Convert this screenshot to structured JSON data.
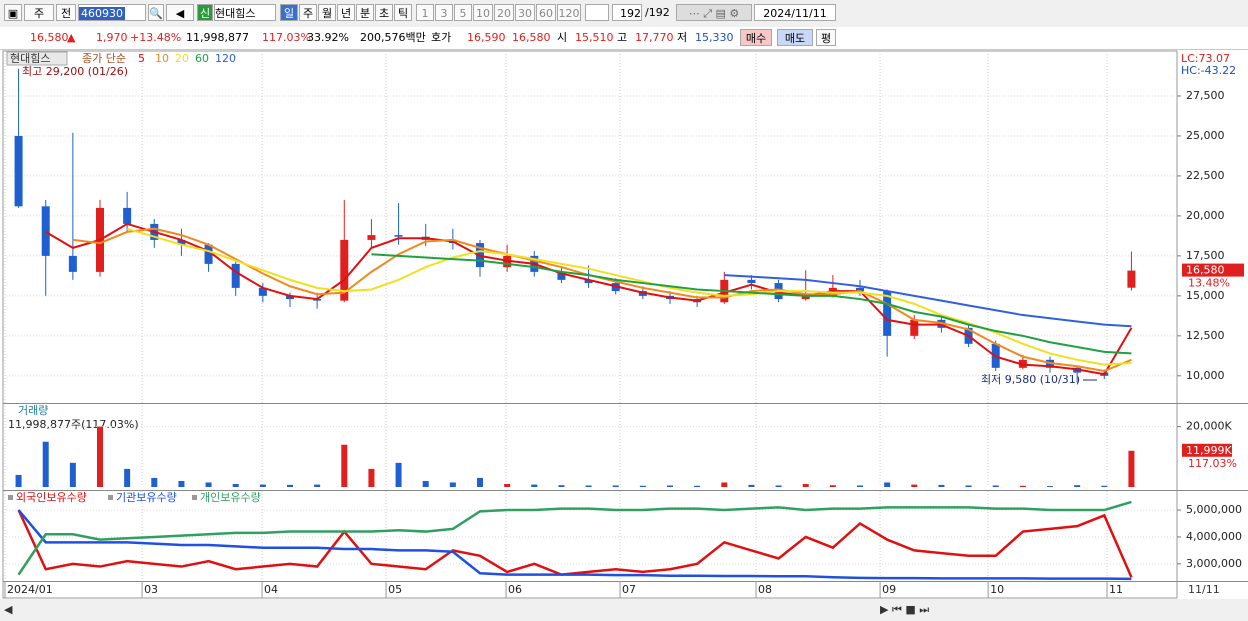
{
  "toolbar": {
    "period": "주",
    "kind": "전",
    "code": "460930",
    "badge": "신",
    "name": "현대힘스",
    "intervals": [
      "일",
      "주",
      "월",
      "년",
      "분",
      "초",
      "틱"
    ],
    "multipliers": [
      "1",
      "3",
      "5",
      "10",
      "20",
      "30",
      "60",
      "120"
    ],
    "count": "192",
    "total": "/192",
    "date": "2024/11/11"
  },
  "quote": {
    "price": "16,580",
    "arrow": "▲",
    "change": "1,970",
    "change_pct": "+13.48%",
    "volume": "11,998,877",
    "volume_ratio": "117.03%",
    "turnover": "33.92%",
    "amount": "200,576백만",
    "ask_label": "호가",
    "ask": "16,590",
    "bid": "16,580",
    "open_label": "시",
    "open": "15,510",
    "high_label": "고",
    "high": "17,770",
    "low_label": "저",
    "low": "15,330",
    "buy": "매수",
    "sell": "매도",
    "avg": "평"
  },
  "chart_data": [
    {
      "type": "candlestick",
      "stock_name": "현대힘스",
      "ma_label": "종가 단순",
      "up_color": "#e0201f",
      "down_color": "#1f5fd0",
      "open": [
        25000,
        20600,
        17500,
        16500,
        20500,
        19500,
        18500,
        18200,
        17000,
        15500,
        15000,
        14800,
        14700,
        18500,
        18800,
        18700,
        18500,
        18300,
        16800,
        17500,
        16500,
        16000,
        15800,
        15300,
        15000,
        14800,
        14600,
        16000,
        15800,
        14800,
        15000,
        15500,
        15300,
        12500,
        13500,
        13000,
        12000,
        10500,
        11000,
        10500,
        10200,
        15510
      ],
      "high": [
        29200,
        21000,
        25200,
        21000,
        21500,
        19800,
        19200,
        18300,
        17200,
        15800,
        15200,
        15200,
        21000,
        19800,
        20800,
        19500,
        19200,
        18500,
        18200,
        17800,
        16800,
        16900,
        16100,
        15600,
        15300,
        15000,
        16500,
        16300,
        16000,
        16600,
        16300,
        16000,
        15400,
        13800,
        13700,
        13200,
        12200,
        11300,
        11200,
        10600,
        10400,
        17770
      ],
      "low": [
        20500,
        15000,
        16000,
        16200,
        19000,
        18000,
        17500,
        16500,
        15000,
        14600,
        14300,
        14200,
        14600,
        18000,
        18200,
        18100,
        17900,
        16200,
        16500,
        16200,
        15800,
        15500,
        15100,
        14800,
        14500,
        14300,
        14500,
        15400,
        14600,
        14700,
        14900,
        15000,
        11200,
        12300,
        12700,
        11800,
        10300,
        10400,
        10200,
        9580,
        9800,
        15330
      ],
      "close": [
        20600,
        17500,
        16500,
        20500,
        19500,
        18500,
        18200,
        17000,
        15500,
        15000,
        14800,
        14700,
        18500,
        18800,
        18700,
        18500,
        18300,
        16800,
        17500,
        16500,
        16000,
        15800,
        15300,
        15000,
        14800,
        14600,
        16000,
        15800,
        14800,
        15000,
        15500,
        15300,
        12500,
        13500,
        13000,
        12000,
        10500,
        11000,
        10500,
        10200,
        10000,
        16580
      ],
      "series": [
        {
          "name": "5",
          "color": "#e01010",
          "values": [
            null,
            19000,
            18000,
            18500,
            19500,
            19000,
            18500,
            17800,
            16500,
            15500,
            15000,
            14800,
            16000,
            18000,
            18600,
            18600,
            18400,
            17500,
            17200,
            17000,
            16400,
            16000,
            15600,
            15200,
            14900,
            14700,
            15200,
            15700,
            15200,
            15000,
            15300,
            15300,
            13500,
            13200,
            13200,
            12500,
            11200,
            10700,
            10600,
            10400,
            10100,
            13000
          ]
        },
        {
          "name": "10",
          "color": "#f08a20",
          "values": [
            null,
            null,
            18500,
            18300,
            19000,
            19200,
            18800,
            18200,
            17300,
            16400,
            15600,
            15100,
            15200,
            16500,
            17600,
            18400,
            18500,
            18000,
            17600,
            17200,
            16800,
            16300,
            15900,
            15500,
            15200,
            14900,
            14900,
            15300,
            15400,
            15100,
            15100,
            15300,
            14500,
            13500,
            13300,
            12900,
            12000,
            11200,
            10800,
            10600,
            10300,
            11000
          ]
        },
        {
          "name": "20",
          "color": "#f0e020",
          "values": [
            null,
            null,
            null,
            null,
            19200,
            18700,
            18200,
            17800,
            17200,
            16600,
            16000,
            15500,
            15300,
            15400,
            16000,
            16800,
            17400,
            17800,
            17600,
            17300,
            17000,
            16700,
            16300,
            15900,
            15500,
            15200,
            15000,
            15100,
            15300,
            15300,
            15200,
            15200,
            15000,
            14500,
            13800,
            13300,
            12700,
            12000,
            11400,
            11000,
            10700,
            10800
          ]
        },
        {
          "name": "60",
          "color": "#20a040",
          "values": [
            null,
            null,
            null,
            null,
            null,
            null,
            null,
            null,
            null,
            null,
            null,
            null,
            null,
            17600,
            17500,
            17400,
            17300,
            17200,
            17000,
            16800,
            16500,
            16300,
            16000,
            15800,
            15600,
            15400,
            15300,
            15200,
            15100,
            15000,
            15000,
            14800,
            14500,
            14000,
            13700,
            13200,
            12800,
            12500,
            12100,
            11800,
            11500,
            11400
          ]
        },
        {
          "name": "120",
          "color": "#3060e0",
          "values": [
            null,
            null,
            null,
            null,
            null,
            null,
            null,
            null,
            null,
            null,
            null,
            null,
            null,
            null,
            null,
            null,
            null,
            null,
            null,
            null,
            null,
            null,
            null,
            null,
            null,
            null,
            16300,
            16200,
            16100,
            16000,
            15800,
            15600,
            15300,
            15000,
            14700,
            14400,
            14100,
            13800,
            13600,
            13400,
            13200,
            13100
          ]
        }
      ],
      "ylim": [
        8300,
        30250
      ],
      "yticks": [
        {
          "value": 10000,
          "label": "10,000"
        },
        {
          "value": 12500,
          "label": "12,500"
        },
        {
          "value": 15000,
          "label": "15,000"
        },
        {
          "value": 17500,
          "label": "17,500"
        },
        {
          "value": 20000,
          "label": "20,000"
        },
        {
          "value": 22500,
          "label": "22,500"
        },
        {
          "value": 25000,
          "label": "25,000"
        },
        {
          "value": 27500,
          "label": "27,500"
        }
      ],
      "max_label": "최고 29,200 (01/26)",
      "min_label": "최저 9,580 (10/31)",
      "last_price_label": "16,580",
      "last_change_label": "13.48%",
      "lc_label": "LC:73.07",
      "hc_label": "HC:-43.22"
    },
    {
      "type": "bar",
      "title": "거래량",
      "subtitle": "11,998,877주(117.03%)",
      "values": [
        4000,
        15000,
        8000,
        20000,
        6000,
        3000,
        2000,
        1500,
        1000,
        800,
        700,
        800,
        14000,
        6000,
        8000,
        2000,
        1500,
        3000,
        1000,
        800,
        600,
        500,
        500,
        400,
        500,
        400,
        1500,
        700,
        500,
        1000,
        600,
        500,
        1500,
        800,
        700,
        500,
        500,
        400,
        300,
        600,
        400,
        11999
      ],
      "ylim": [
        0,
        26500
      ],
      "yticks": [
        {
          "value": 20000,
          "label": "20,000K"
        }
      ],
      "last_value_label": "11,999K",
      "last_ratio_label": "117.03%"
    },
    {
      "type": "line",
      "series": [
        {
          "name": "외국인보유수량",
          "color": "#e01010",
          "values": [
            5000000,
            2800000,
            3000000,
            2900000,
            3100000,
            3000000,
            2900000,
            3100000,
            2800000,
            2900000,
            3000000,
            2900000,
            4200000,
            3000000,
            2900000,
            2800000,
            3500000,
            3300000,
            2700000,
            3000000,
            2600000,
            2700000,
            2800000,
            2700000,
            2800000,
            3000000,
            3800000,
            3500000,
            3200000,
            4000000,
            3600000,
            4500000,
            3900000,
            3500000,
            3400000,
            3300000,
            3300000,
            4200000,
            4300000,
            4400000,
            4800000,
            2500000
          ]
        },
        {
          "name": "기관보유수량",
          "color": "#2050e0",
          "values": [
            5000000,
            3800000,
            3800000,
            3800000,
            3800000,
            3750000,
            3700000,
            3700000,
            3650000,
            3600000,
            3600000,
            3600000,
            3550000,
            3550000,
            3500000,
            3500000,
            3450000,
            2650000,
            2600000,
            2600000,
            2600000,
            2600000,
            2580000,
            2580000,
            2560000,
            2560000,
            2550000,
            2550000,
            2540000,
            2540000,
            2500000,
            2480000,
            2470000,
            2470000,
            2460000,
            2460000,
            2460000,
            2460000,
            2450000,
            2450000,
            2450000,
            2440000
          ]
        },
        {
          "name": "개인보유수량",
          "color": "#30a060",
          "values": [
            2600000,
            4100000,
            4100000,
            3900000,
            3950000,
            4000000,
            4050000,
            4100000,
            4150000,
            4150000,
            4200000,
            4200000,
            4200000,
            4200000,
            4250000,
            4200000,
            4300000,
            4950000,
            5000000,
            5000000,
            5050000,
            5050000,
            5000000,
            5000000,
            5050000,
            5050000,
            5000000,
            5050000,
            5100000,
            5000000,
            5050000,
            5050000,
            5100000,
            5100000,
            5100000,
            5100000,
            5050000,
            5050000,
            5000000,
            5000000,
            5000000,
            5300000
          ]
        }
      ],
      "ylim": [
        2400000,
        5670000
      ],
      "yticks": [
        {
          "value": 3000000,
          "label": "3,000,000"
        },
        {
          "value": 4000000,
          "label": "4,000,000"
        },
        {
          "value": 5000000,
          "label": "5,000,000"
        }
      ],
      "xlim": [
        0,
        42
      ],
      "xticks": [
        {
          "value": 0,
          "label": "2024/01"
        },
        {
          "value": 5.05,
          "label": "03"
        },
        {
          "value": 9.47,
          "label": "04"
        },
        {
          "value": 14.04,
          "label": "05"
        },
        {
          "value": 18.46,
          "label": "06"
        },
        {
          "value": 22.66,
          "label": "07"
        },
        {
          "value": 27.67,
          "label": "08"
        },
        {
          "value": 32.24,
          "label": "09"
        },
        {
          "value": 36.22,
          "label": "10"
        },
        {
          "value": 40.6,
          "label": "11"
        }
      ],
      "last_date_label": "11/11"
    }
  ]
}
